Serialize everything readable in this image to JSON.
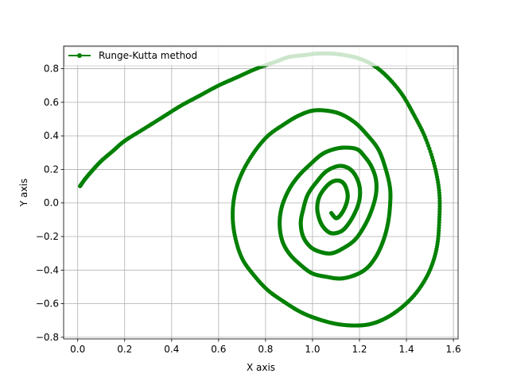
{
  "chart_data": {
    "type": "line",
    "title": "",
    "xlabel": "X axis",
    "ylabel": "Y axis",
    "xlim": [
      -0.06,
      1.62
    ],
    "ylim": [
      -0.81,
      0.935
    ],
    "xticks": [
      0.0,
      0.2,
      0.4,
      0.6,
      0.8,
      1.0,
      1.2,
      1.4,
      1.6
    ],
    "yticks": [
      -0.8,
      -0.6,
      -0.4,
      -0.2,
      0.0,
      0.2,
      0.4,
      0.6,
      0.8
    ],
    "xtick_labels": [
      "0.0",
      "0.2",
      "0.4",
      "0.6",
      "0.8",
      "1.0",
      "1.2",
      "1.4",
      "1.6"
    ],
    "ytick_labels": [
      "−0.8",
      "−0.6",
      "−0.4",
      "−0.2",
      "0.0",
      "0.2",
      "0.4",
      "0.6",
      "0.8"
    ],
    "grid": true,
    "legend_position": "top-left",
    "series": [
      {
        "name": "Runge-Kutta method",
        "color": "#008000",
        "marker": "circle",
        "x": [
          0.01,
          0.03,
          0.06,
          0.1,
          0.15,
          0.2,
          0.28,
          0.36,
          0.44,
          0.52,
          0.6,
          0.68,
          0.76,
          0.84,
          0.9,
          0.96,
          1.02,
          1.08,
          1.14,
          1.2,
          1.26,
          1.32,
          1.38,
          1.43,
          1.48,
          1.52,
          1.54,
          1.54,
          1.53,
          1.5,
          1.45,
          1.39,
          1.32,
          1.25,
          1.18,
          1.1,
          1.02,
          0.95,
          0.88,
          0.81,
          0.75,
          0.7,
          0.67,
          0.66,
          0.67,
          0.7,
          0.75,
          0.81,
          0.88,
          0.94,
          1.0,
          1.06,
          1.12,
          1.18,
          1.23,
          1.28,
          1.31,
          1.33,
          1.33,
          1.32,
          1.3,
          1.27,
          1.23,
          1.18,
          1.12,
          1.06,
          1.0,
          0.95,
          0.9,
          0.87,
          0.86,
          0.87,
          0.9,
          0.94,
          0.99,
          1.04,
          1.09,
          1.14,
          1.19,
          1.22,
          1.25,
          1.27,
          1.27,
          1.25,
          1.22,
          1.18,
          1.13,
          1.08,
          1.03,
          0.99,
          0.96,
          0.95,
          0.96,
          0.98,
          1.02,
          1.06,
          1.11,
          1.15,
          1.18,
          1.2,
          1.2,
          1.18,
          1.15,
          1.12,
          1.08,
          1.05,
          1.03,
          1.02,
          1.03,
          1.06,
          1.09,
          1.12,
          1.14,
          1.15,
          1.14,
          1.12,
          1.1,
          1.08
        ],
        "y": [
          0.1,
          0.14,
          0.19,
          0.25,
          0.31,
          0.37,
          0.44,
          0.51,
          0.58,
          0.64,
          0.7,
          0.75,
          0.8,
          0.84,
          0.87,
          0.88,
          0.89,
          0.89,
          0.88,
          0.86,
          0.82,
          0.75,
          0.65,
          0.53,
          0.39,
          0.22,
          0.06,
          -0.1,
          -0.26,
          -0.4,
          -0.52,
          -0.61,
          -0.68,
          -0.72,
          -0.73,
          -0.72,
          -0.69,
          -0.65,
          -0.59,
          -0.52,
          -0.43,
          -0.33,
          -0.2,
          -0.07,
          0.06,
          0.18,
          0.3,
          0.4,
          0.47,
          0.52,
          0.55,
          0.55,
          0.53,
          0.48,
          0.41,
          0.32,
          0.21,
          0.09,
          -0.02,
          -0.13,
          -0.23,
          -0.32,
          -0.39,
          -0.43,
          -0.45,
          -0.44,
          -0.42,
          -0.37,
          -0.3,
          -0.22,
          -0.12,
          -0.02,
          0.08,
          0.16,
          0.23,
          0.29,
          0.32,
          0.33,
          0.32,
          0.28,
          0.22,
          0.14,
          0.05,
          -0.05,
          -0.14,
          -0.22,
          -0.27,
          -0.3,
          -0.29,
          -0.26,
          -0.2,
          -0.12,
          -0.04,
          0.05,
          0.13,
          0.19,
          0.22,
          0.21,
          0.17,
          0.1,
          0.02,
          -0.06,
          -0.13,
          -0.17,
          -0.18,
          -0.15,
          -0.1,
          -0.03,
          0.04,
          0.1,
          0.13,
          0.13,
          0.1,
          0.04,
          -0.02,
          -0.07,
          -0.09,
          -0.06
        ]
      }
    ]
  }
}
